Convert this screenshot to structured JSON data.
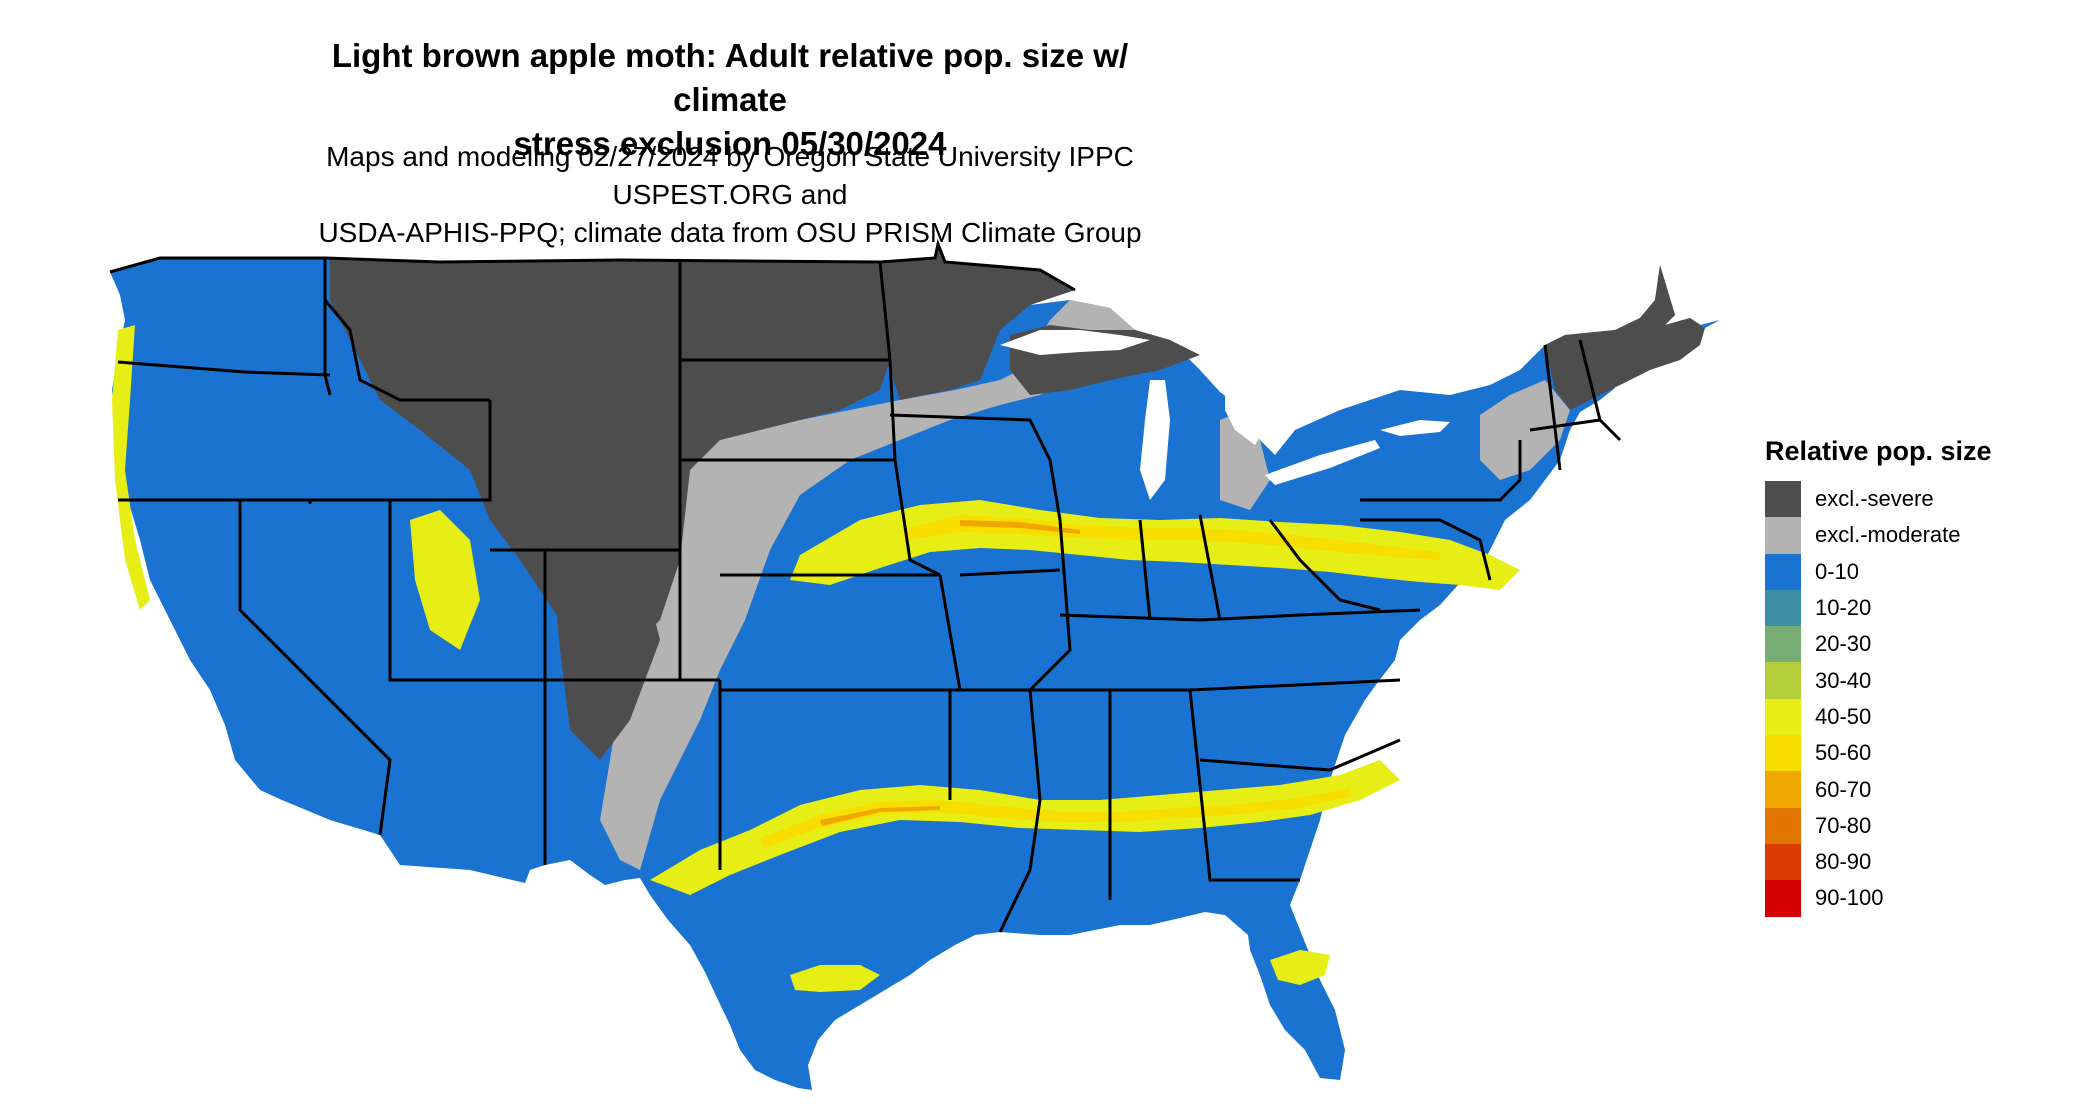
{
  "title_line1": "Light brown apple moth: Adult relative pop. size w/ climate",
  "title_line2": "stress exclusion 05/30/2024",
  "subtitle_line1": "Maps and modeling 02/27/2024 by Oregon State University IPPC USPEST.ORG and",
  "subtitle_line2": "USDA-APHIS-PPQ; climate data from OSU PRISM Climate Group",
  "legend": {
    "title": "Relative pop. size",
    "items": [
      {
        "label": "excl.-severe",
        "color": "#4d4d4d"
      },
      {
        "label": "excl.-moderate",
        "color": "#b3b3b3"
      },
      {
        "label": "0-10",
        "color": "#1a73d1"
      },
      {
        "label": "10-20",
        "color": "#3f8fa4"
      },
      {
        "label": "20-30",
        "color": "#77ac73"
      },
      {
        "label": "30-40",
        "color": "#b5cf3a"
      },
      {
        "label": "40-50",
        "color": "#e6ee16"
      },
      {
        "label": "50-60",
        "color": "#f7de00"
      },
      {
        "label": "60-70",
        "color": "#f0a800"
      },
      {
        "label": "70-80",
        "color": "#e27400"
      },
      {
        "label": "80-90",
        "color": "#d93a00"
      },
      {
        "label": "90-100",
        "color": "#d40000"
      }
    ]
  }
}
